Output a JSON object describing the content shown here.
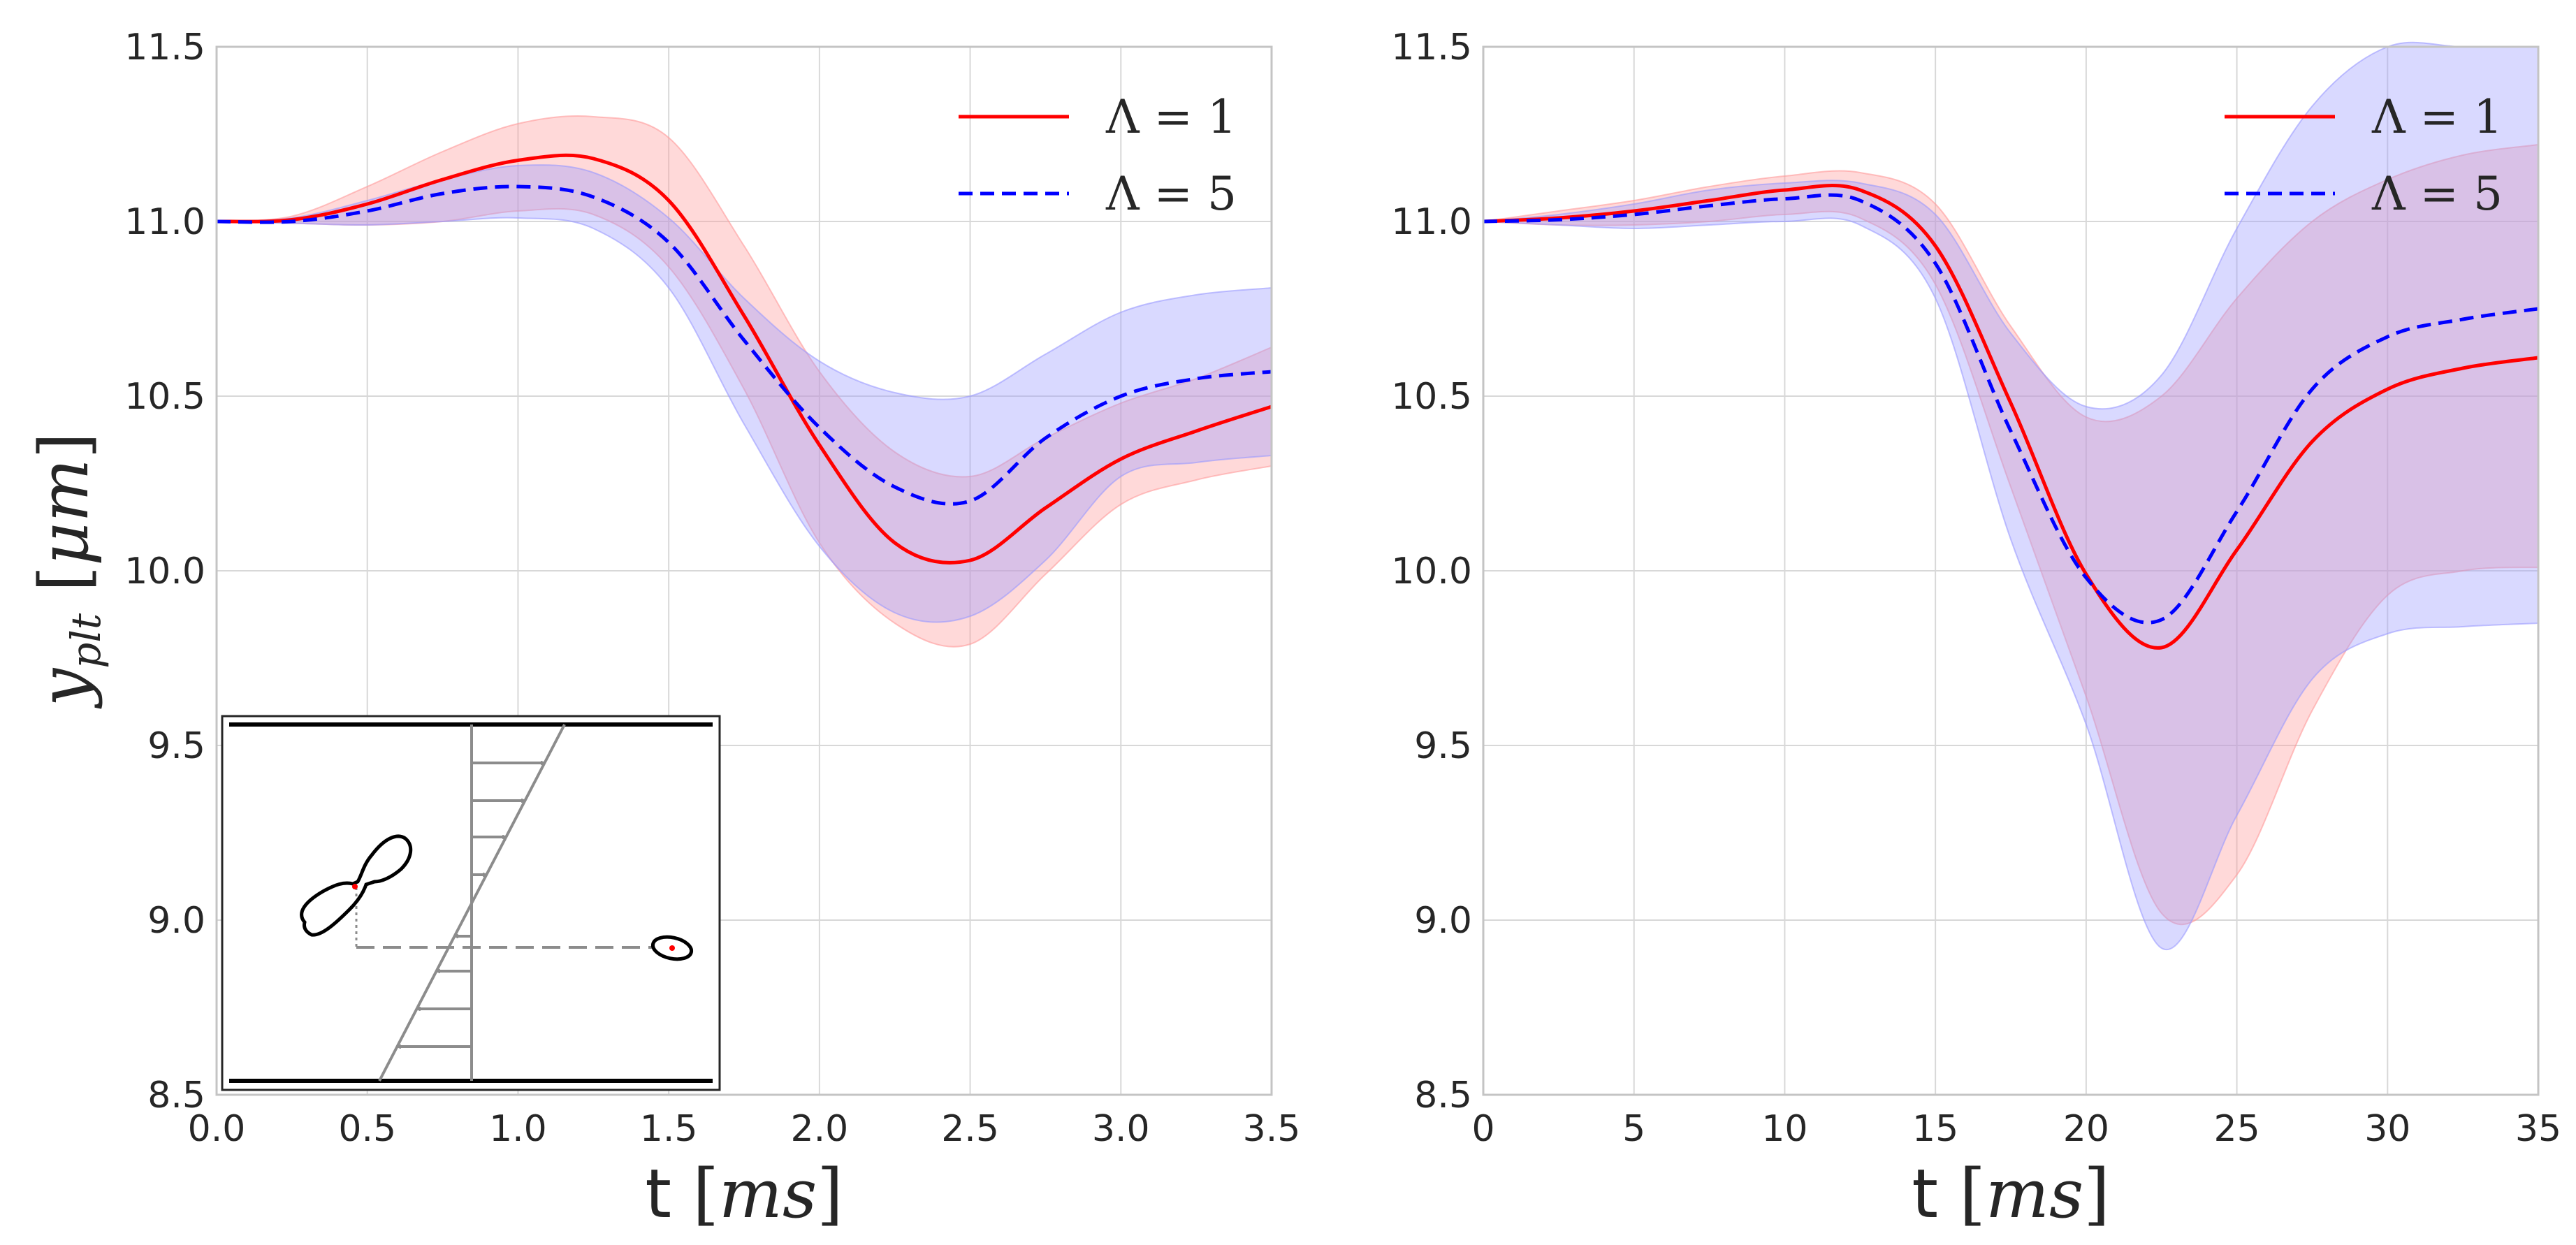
{
  "colors": {
    "red": "#ff0000",
    "blue": "#0000ff",
    "red_band": "#ff9a9a",
    "blue_band": "#9a9aff",
    "grid": "#d8d8d8",
    "frame": "#c4c4c4",
    "text": "#262626",
    "inset_gray": "#8c8c8c"
  },
  "chart_data": [
    {
      "type": "line",
      "title": "",
      "xlabel": "t [ms]",
      "xlabel_parts": {
        "t": "t",
        "open": "[",
        "unit": "ms",
        "close": "]"
      },
      "ylabel": "y_plt [μm]",
      "ylabel_parts": {
        "y": "y",
        "sub": "plt",
        "open": "[",
        "unit": "μm",
        "close": "]"
      },
      "xlim": [
        0,
        3.5
      ],
      "ylim": [
        8.5,
        11.5
      ],
      "xticks": [
        "0.0",
        "0.5",
        "1.0",
        "1.5",
        "2.0",
        "2.5",
        "3.0",
        "3.5"
      ],
      "yticks": [
        "8.5",
        "9.0",
        "9.5",
        "10.0",
        "10.5",
        "11.0",
        "11.5"
      ],
      "grid": true,
      "legend_position": "top-right",
      "x": [
        0,
        0.25,
        0.5,
        0.75,
        1.0,
        1.25,
        1.5,
        1.75,
        2.0,
        2.25,
        2.5,
        2.75,
        3.0,
        3.25,
        3.5
      ],
      "series": [
        {
          "name": "Λ = 1",
          "label_parts": {
            "sym": "Λ",
            "eq": "=",
            "num": "1"
          },
          "color": "#ff0000",
          "dash": "solid",
          "values": [
            11.0,
            11.005,
            11.05,
            11.12,
            11.175,
            11.18,
            11.06,
            10.73,
            10.36,
            10.08,
            10.03,
            10.18,
            10.32,
            10.4,
            10.47
          ],
          "lower": [
            11.0,
            10.995,
            10.99,
            11.0,
            11.03,
            11.02,
            10.87,
            10.52,
            10.08,
            9.85,
            9.79,
            9.99,
            10.19,
            10.26,
            10.3
          ],
          "upper": [
            11.0,
            11.015,
            11.1,
            11.2,
            11.28,
            11.3,
            11.24,
            10.93,
            10.57,
            10.34,
            10.27,
            10.38,
            10.48,
            10.55,
            10.64
          ]
        },
        {
          "name": "Λ = 5",
          "label_parts": {
            "sym": "Λ",
            "eq": "=",
            "num": "5"
          },
          "color": "#0000ff",
          "dash": "dashed",
          "values": [
            11.0,
            11.0,
            11.03,
            11.08,
            11.1,
            11.07,
            10.94,
            10.66,
            10.41,
            10.24,
            10.2,
            10.38,
            10.5,
            10.55,
            10.57
          ],
          "lower": [
            11.0,
            10.995,
            10.99,
            11.0,
            11.01,
            10.98,
            10.81,
            10.42,
            10.07,
            9.88,
            9.87,
            10.03,
            10.27,
            10.31,
            10.33
          ],
          "upper": [
            11.0,
            11.01,
            11.06,
            11.12,
            11.16,
            11.14,
            11.01,
            10.78,
            10.6,
            10.51,
            10.5,
            10.62,
            10.74,
            10.79,
            10.81
          ]
        }
      ],
      "inset": {
        "description_name": "shear-flow-schematic",
        "type": "schematic"
      }
    },
    {
      "type": "line",
      "title": "",
      "xlabel": "t [ms]",
      "xlabel_parts": {
        "t": "t",
        "open": "[",
        "unit": "ms",
        "close": "]"
      },
      "ylabel": "",
      "xlim": [
        0,
        35
      ],
      "ylim": [
        8.5,
        11.5
      ],
      "xticks": [
        "0",
        "5",
        "10",
        "15",
        "20",
        "25",
        "30",
        "35"
      ],
      "yticks": [
        "8.5",
        "9.0",
        "9.5",
        "10.0",
        "10.5",
        "11.0",
        "11.5"
      ],
      "grid": true,
      "legend_position": "top-right",
      "x": [
        0,
        2.5,
        5,
        7.5,
        10,
        12.5,
        15,
        17.5,
        20,
        22.5,
        25,
        27.5,
        30,
        32.5,
        35
      ],
      "series": [
        {
          "name": "Λ = 1",
          "label_parts": {
            "sym": "Λ",
            "eq": "=",
            "num": "1"
          },
          "color": "#ff0000",
          "dash": "solid",
          "values": [
            11.0,
            11.01,
            11.03,
            11.06,
            11.09,
            11.09,
            10.93,
            10.48,
            9.99,
            9.78,
            10.06,
            10.37,
            10.52,
            10.58,
            10.61
          ],
          "lower": [
            11.0,
            10.99,
            10.99,
            11.0,
            11.02,
            11.01,
            10.82,
            10.24,
            9.64,
            9.02,
            9.13,
            9.6,
            9.93,
            10.0,
            10.01
          ],
          "upper": [
            11.0,
            11.03,
            11.06,
            11.1,
            11.13,
            11.14,
            11.05,
            10.7,
            10.44,
            10.5,
            10.78,
            11.0,
            11.12,
            11.19,
            11.22
          ]
        },
        {
          "name": "Λ = 5",
          "label_parts": {
            "sym": "Λ",
            "eq": "=",
            "num": "5"
          },
          "color": "#0000ff",
          "dash": "dashed",
          "values": [
            11.0,
            11.005,
            11.02,
            11.045,
            11.065,
            11.06,
            10.88,
            10.4,
            9.98,
            9.86,
            10.17,
            10.52,
            10.67,
            10.72,
            10.75
          ],
          "lower": [
            11.0,
            10.99,
            10.98,
            10.99,
            11.0,
            10.99,
            10.78,
            10.09,
            9.56,
            8.92,
            9.3,
            9.69,
            9.82,
            9.84,
            9.85
          ],
          "upper": [
            11.0,
            11.02,
            11.05,
            11.09,
            11.11,
            11.11,
            11.02,
            10.68,
            10.47,
            10.56,
            10.98,
            11.33,
            11.5,
            11.5,
            11.5
          ]
        }
      ]
    }
  ]
}
